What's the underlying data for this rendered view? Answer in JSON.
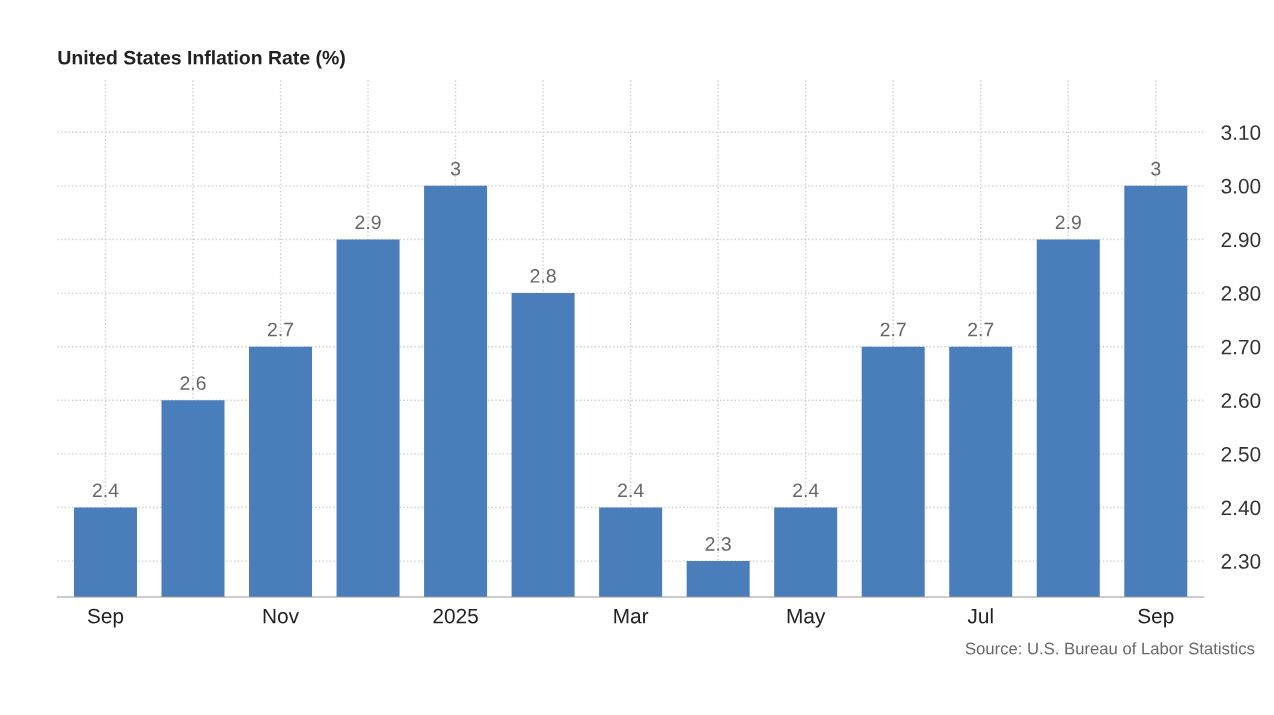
{
  "chart_data": {
    "type": "bar",
    "title": "United States Inflation Rate (%)",
    "categories": [
      "Sep",
      null,
      "Nov",
      null,
      "2025",
      null,
      "Mar",
      null,
      "May",
      null,
      "Jul",
      null,
      "Sep"
    ],
    "values": [
      2.4,
      2.6,
      2.7,
      2.9,
      3,
      2.8,
      2.4,
      2.3,
      2.4,
      2.7,
      2.7,
      2.9,
      3
    ],
    "color": "#4a7ebb",
    "ylim": [
      2.233,
      3.2
    ],
    "yticks": [
      {
        "value": 2.3,
        "label": "2.30"
      },
      {
        "value": 2.4,
        "label": "2.40"
      },
      {
        "value": 2.5,
        "label": "2.50"
      },
      {
        "value": 2.6,
        "label": "2.60"
      },
      {
        "value": 2.7,
        "label": "2.70"
      },
      {
        "value": 2.8,
        "label": "2.80"
      },
      {
        "value": 2.9,
        "label": "2.90"
      },
      {
        "value": 3.0,
        "label": "3.00"
      },
      {
        "value": 3.1,
        "label": "3.10"
      }
    ],
    "data_labels": true,
    "grid": true,
    "annotations": [
      "Source: U.S. Bureau of Labor Statistics"
    ]
  }
}
